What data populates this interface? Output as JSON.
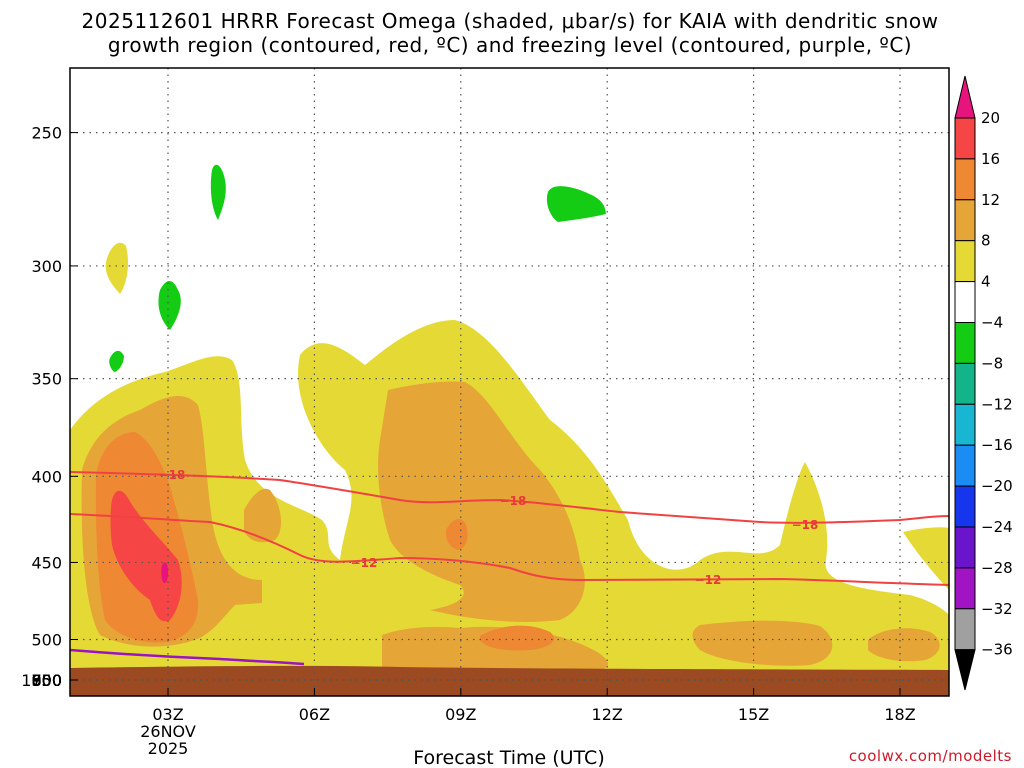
{
  "chart_data": {
    "type": "heatmap",
    "title_line1": "2025112601 HRRR Forecast Omega (shaded, μbar/s) for KAIA with dendritic snow",
    "title_line2": "growth region (contoured, red, ºC) and freezing level (contoured, purple, ºC)",
    "xlabel": "Forecast Time (UTC)",
    "ylabel": "",
    "credit": "coolwx.com/modelts",
    "x_ticks": [
      {
        "label": "03Z",
        "hour": 3,
        "sub1": "26NOV",
        "sub2": "2025"
      },
      {
        "label": "06Z",
        "hour": 6
      },
      {
        "label": "09Z",
        "hour": 9
      },
      {
        "label": "12Z",
        "hour": 12
      },
      {
        "label": "15Z",
        "hour": 15
      },
      {
        "label": "18Z",
        "hour": 18
      }
    ],
    "x_range_hours": [
      1,
      19
    ],
    "y_axis_units": "hPa",
    "y_ticks": [
      250,
      300,
      350,
      400,
      450,
      500,
      550,
      600,
      650,
      700,
      750,
      800,
      850,
      900,
      950,
      1000
    ],
    "colorbar": {
      "levels": [
        20,
        16,
        12,
        8,
        4,
        -4,
        -8,
        -12,
        -16,
        -20,
        -24,
        -28,
        -32,
        -36
      ],
      "colors": [
        "#e6147c",
        "#f54545",
        "#ee8833",
        "#e5a637",
        "#e5da35",
        "#ffffff",
        "#14cc14",
        "#14b48a",
        "#18b6d3",
        "#1b8cf4",
        "#1636ee",
        "#6a14cc",
        "#a014c4",
        "#a0a0a0",
        "#000000"
      ]
    },
    "omega_regions": [
      {
        "level": 4,
        "color": "#e5da35",
        "desc": "broad upward-motion region 01Z-19Z"
      },
      {
        "level": 8,
        "color": "#e5a637",
        "desc": "moderate lift"
      },
      {
        "level": 12,
        "color": "#ee8833",
        "desc": "strong lift"
      },
      {
        "level": 16,
        "color": "#f54545",
        "desc": "core near 02Z-03Z"
      },
      {
        "level": -4,
        "color": "#14cc14",
        "desc": "weak subsidence pockets aloft"
      }
    ],
    "dgz_contours": [
      {
        "temp_c": -18,
        "label": "−18",
        "color": "#f04242"
      },
      {
        "temp_c": -12,
        "label": "−12",
        "color": "#f04242"
      }
    ],
    "freezing_level": {
      "color": "#9a14c4"
    },
    "surface_color": "#9c4a22"
  }
}
